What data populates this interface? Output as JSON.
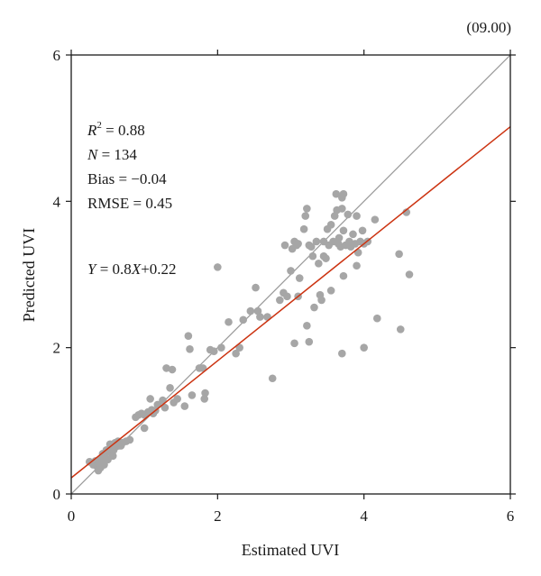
{
  "panel_tag": "(09.00)",
  "chart_data": {
    "type": "scatter",
    "xlabel": "Estimated UVI",
    "ylabel": "Predicted UVI",
    "xlim": [
      0,
      6
    ],
    "ylim": [
      0,
      6
    ],
    "x_ticks": [
      0,
      2,
      4,
      6
    ],
    "y_ticks": [
      0,
      2,
      4,
      6
    ],
    "grid": false,
    "annotations": {
      "r2_label": "R",
      "r2_sup": "2",
      "r2_value": " = 0.88",
      "n_label": "N",
      "n_value": " = 134",
      "bias": "Bias = −0.04",
      "rmse": "RMSE = 0.45",
      "eq_y": "Y",
      "eq_mid": " = 0.8",
      "eq_x": "X",
      "eq_tail": "+0.22"
    },
    "reference_line": {
      "slope": 1,
      "intercept": 0,
      "color": "#999999"
    },
    "fit_line": {
      "slope": 0.8,
      "intercept": 0.22,
      "color": "#cc3311"
    },
    "point_color": "#a6a6a6",
    "points": [
      [
        0.25,
        0.44
      ],
      [
        0.3,
        0.4
      ],
      [
        0.33,
        0.45
      ],
      [
        0.35,
        0.38
      ],
      [
        0.37,
        0.32
      ],
      [
        0.38,
        0.42
      ],
      [
        0.4,
        0.48
      ],
      [
        0.4,
        0.36
      ],
      [
        0.42,
        0.44
      ],
      [
        0.44,
        0.52
      ],
      [
        0.45,
        0.4
      ],
      [
        0.46,
        0.55
      ],
      [
        0.48,
        0.6
      ],
      [
        0.5,
        0.47
      ],
      [
        0.52,
        0.58
      ],
      [
        0.53,
        0.68
      ],
      [
        0.55,
        0.62
      ],
      [
        0.57,
        0.52
      ],
      [
        0.6,
        0.7
      ],
      [
        0.62,
        0.65
      ],
      [
        0.64,
        0.72
      ],
      [
        0.66,
        0.66
      ],
      [
        0.7,
        0.7
      ],
      [
        0.75,
        0.72
      ],
      [
        0.8,
        0.74
      ],
      [
        0.88,
        1.05
      ],
      [
        0.92,
        1.08
      ],
      [
        0.96,
        1.1
      ],
      [
        1.0,
        1.08
      ],
      [
        1.0,
        0.9
      ],
      [
        1.05,
        1.12
      ],
      [
        1.08,
        1.3
      ],
      [
        1.1,
        1.15
      ],
      [
        1.12,
        1.1
      ],
      [
        1.18,
        1.22
      ],
      [
        1.25,
        1.28
      ],
      [
        1.28,
        1.18
      ],
      [
        1.3,
        1.72
      ],
      [
        1.35,
        1.45
      ],
      [
        1.38,
        1.7
      ],
      [
        1.4,
        1.25
      ],
      [
        1.55,
        1.2
      ],
      [
        1.6,
        2.16
      ],
      [
        1.62,
        1.98
      ],
      [
        1.65,
        1.35
      ],
      [
        1.75,
        1.72
      ],
      [
        1.8,
        1.72
      ],
      [
        1.82,
        1.3
      ],
      [
        1.83,
        1.38
      ],
      [
        1.9,
        1.97
      ],
      [
        1.95,
        1.95
      ],
      [
        2.0,
        3.1
      ],
      [
        2.15,
        2.35
      ],
      [
        2.25,
        1.92
      ],
      [
        2.3,
        2.0
      ],
      [
        2.35,
        2.38
      ],
      [
        2.45,
        2.5
      ],
      [
        2.52,
        2.82
      ],
      [
        2.58,
        2.42
      ],
      [
        2.68,
        2.42
      ],
      [
        2.75,
        1.58
      ],
      [
        2.85,
        2.65
      ],
      [
        2.9,
        2.75
      ],
      [
        2.92,
        3.4
      ],
      [
        2.95,
        2.7
      ],
      [
        3.0,
        3.05
      ],
      [
        3.02,
        3.35
      ],
      [
        3.05,
        3.45
      ],
      [
        3.05,
        2.06
      ],
      [
        3.08,
        3.4
      ],
      [
        3.1,
        3.42
      ],
      [
        3.12,
        2.95
      ],
      [
        3.18,
        3.62
      ],
      [
        3.2,
        3.8
      ],
      [
        3.22,
        3.9
      ],
      [
        3.22,
        2.3
      ],
      [
        3.25,
        3.4
      ],
      [
        3.25,
        2.08
      ],
      [
        3.28,
        3.38
      ],
      [
        3.3,
        3.25
      ],
      [
        3.32,
        2.55
      ],
      [
        3.35,
        3.45
      ],
      [
        3.38,
        3.15
      ],
      [
        3.4,
        2.72
      ],
      [
        3.42,
        2.65
      ],
      [
        3.45,
        3.25
      ],
      [
        3.48,
        3.22
      ],
      [
        3.5,
        3.62
      ],
      [
        3.52,
        3.4
      ],
      [
        3.55,
        2.78
      ],
      [
        3.55,
        3.68
      ],
      [
        3.58,
        3.45
      ],
      [
        3.6,
        3.8
      ],
      [
        3.62,
        4.1
      ],
      [
        3.63,
        3.88
      ],
      [
        3.65,
        3.42
      ],
      [
        3.66,
        3.5
      ],
      [
        3.68,
        3.38
      ],
      [
        3.7,
        3.9
      ],
      [
        3.7,
        4.05
      ],
      [
        3.72,
        3.6
      ],
      [
        3.72,
        4.1
      ],
      [
        3.75,
        3.4
      ],
      [
        3.78,
        3.82
      ],
      [
        3.8,
        3.45
      ],
      [
        3.82,
        3.38
      ],
      [
        3.85,
        3.55
      ],
      [
        3.88,
        3.42
      ],
      [
        3.9,
        3.8
      ],
      [
        3.9,
        3.12
      ],
      [
        3.92,
        3.3
      ],
      [
        3.95,
        3.45
      ],
      [
        3.98,
        3.6
      ],
      [
        4.0,
        3.42
      ],
      [
        4.05,
        3.45
      ],
      [
        4.15,
        3.75
      ],
      [
        4.18,
        2.4
      ],
      [
        3.7,
        1.92
      ],
      [
        4.0,
        2.0
      ],
      [
        4.5,
        2.25
      ],
      [
        4.48,
        3.28
      ],
      [
        4.58,
        3.85
      ],
      [
        4.62,
        3.0
      ],
      [
        3.72,
        2.98
      ],
      [
        0.43,
        0.55
      ],
      [
        0.47,
        0.5
      ],
      [
        0.58,
        0.6
      ],
      [
        0.68,
        0.66
      ],
      [
        1.15,
        1.14
      ],
      [
        1.45,
        1.3
      ],
      [
        2.05,
        2.0
      ],
      [
        2.55,
        2.5
      ],
      [
        3.1,
        2.7
      ],
      [
        3.45,
        3.45
      ]
    ]
  }
}
